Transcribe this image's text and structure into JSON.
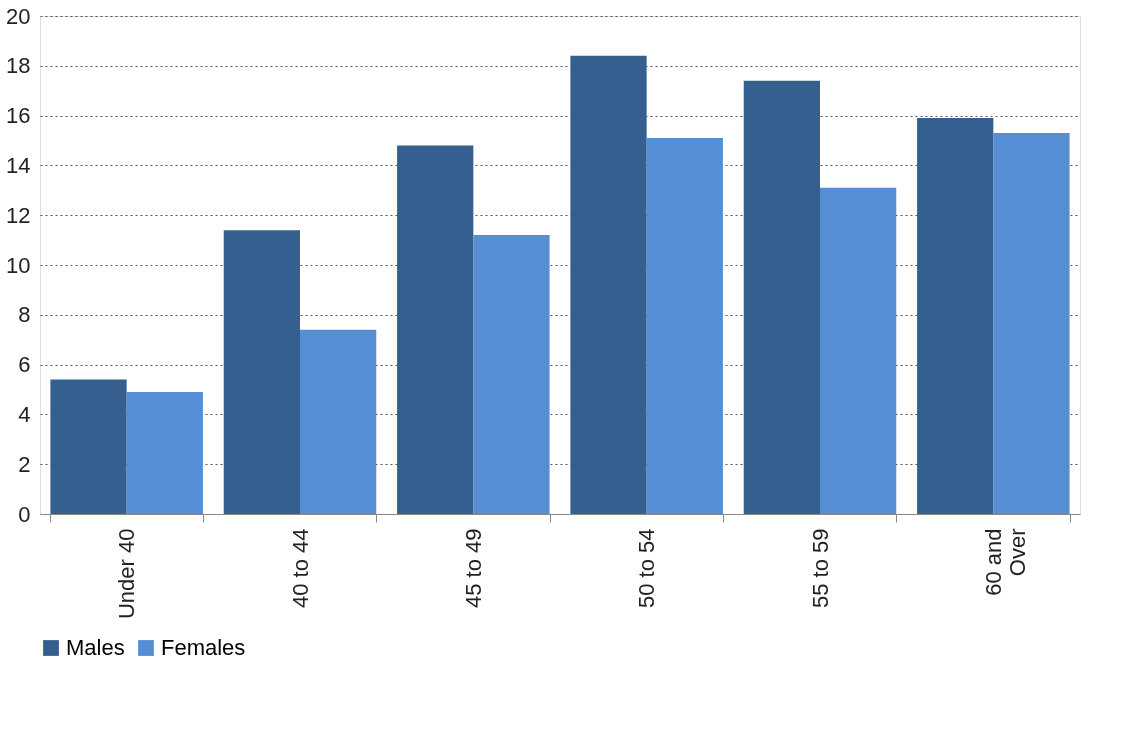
{
  "chart_data": {
    "type": "bar",
    "categories": [
      "Under 40",
      "40 to 44",
      "45 to 49",
      "50 to 54",
      "55 to 59",
      "60 and Over"
    ],
    "series": [
      {
        "name": "Males",
        "color": "#355f8f",
        "values": [
          5.4,
          11.4,
          14.8,
          18.4,
          17.4,
          15.9
        ]
      },
      {
        "name": "Females",
        "color": "#558ed5",
        "values": [
          4.9,
          7.4,
          11.2,
          15.1,
          13.1,
          15.3
        ]
      }
    ],
    "ylim": [
      0,
      20
    ],
    "yticks": [
      0,
      2,
      4,
      6,
      8,
      10,
      12,
      14,
      16,
      18,
      20
    ],
    "grid": "y",
    "legend": "bottom"
  }
}
